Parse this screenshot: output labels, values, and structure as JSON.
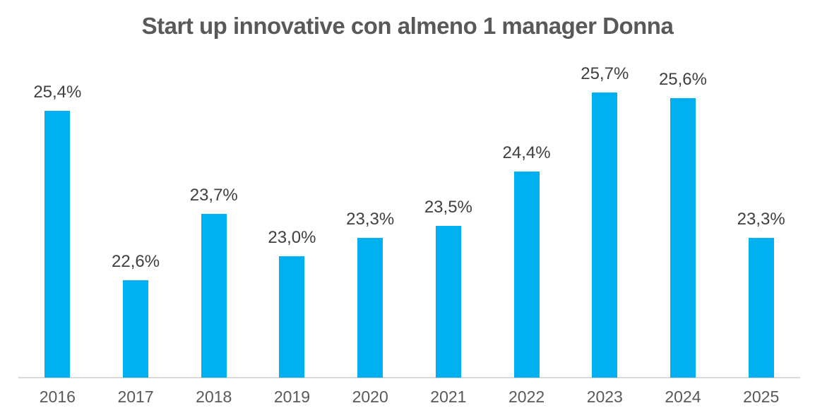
{
  "chart_data": {
    "type": "bar",
    "title": "Start up innovative con almeno 1 manager Donna",
    "categories": [
      "2016",
      "2017",
      "2018",
      "2019",
      "2020",
      "2021",
      "2022",
      "2023",
      "2024",
      "2025"
    ],
    "values": [
      25.4,
      22.6,
      23.7,
      23.0,
      23.3,
      23.5,
      24.4,
      25.7,
      25.6,
      23.3
    ],
    "value_labels": [
      "25,4%",
      "22,6%",
      "23,7%",
      "23,0%",
      "23,3%",
      "23,5%",
      "24,4%",
      "25,7%",
      "25,6%",
      "23,3%"
    ],
    "xlabel": "",
    "ylabel": "",
    "ylim": [
      21,
      26
    ],
    "grid": false,
    "legend": null,
    "data_labels_visible": true,
    "colors": {
      "bar": "#00B0F0",
      "title": "#595959",
      "value_label": "#404040",
      "tick_label": "#595959",
      "axis_line": "#D9D9D9",
      "background": "#FFFFFF"
    }
  }
}
